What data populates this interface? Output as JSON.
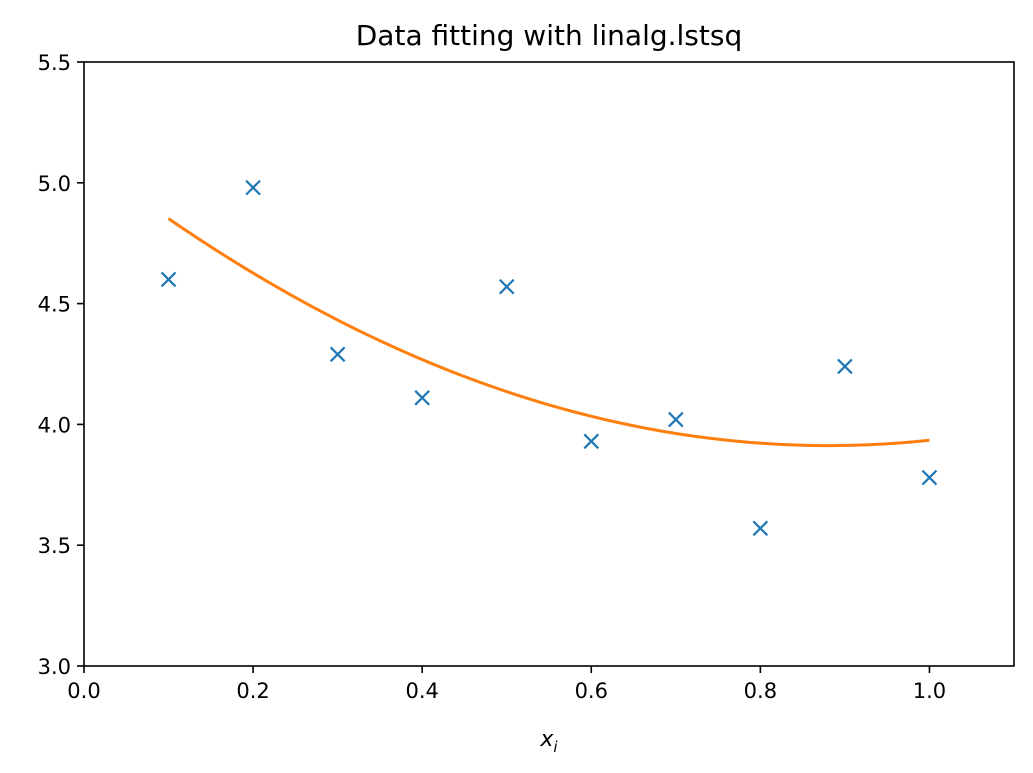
{
  "chart_data": {
    "type": "scatter",
    "title": "Data fitting with linalg.lstsq",
    "xlabel": "x",
    "xlabel_subscript": "i",
    "ylabel": "",
    "xlim": [
      0.0,
      1.1
    ],
    "ylim": [
      3.0,
      5.5
    ],
    "x_ticks": [
      "0.0",
      "0.2",
      "0.4",
      "0.6",
      "0.8",
      "1.0"
    ],
    "y_ticks": [
      "3.0",
      "3.5",
      "4.0",
      "4.5",
      "5.0",
      "5.5"
    ],
    "grid": false,
    "series": [
      {
        "kind": "scatter",
        "marker": "x",
        "color": "#1f77b4",
        "x": [
          0.1,
          0.2,
          0.3,
          0.4,
          0.5,
          0.6,
          0.7,
          0.8,
          0.9,
          1.0
        ],
        "y": [
          4.6,
          4.98,
          4.29,
          4.11,
          4.57,
          3.93,
          4.02,
          3.57,
          4.24,
          3.78
        ]
      },
      {
        "kind": "line",
        "color": "#ff7f0e",
        "x": [
          0.1,
          0.2,
          0.3,
          0.4,
          0.5,
          0.6,
          0.7,
          0.8,
          0.9,
          1.0
        ],
        "y": [
          4.87,
          4.62,
          4.41,
          4.26,
          4.14,
          4.04,
          3.97,
          3.93,
          3.92,
          3.92
        ]
      }
    ]
  }
}
